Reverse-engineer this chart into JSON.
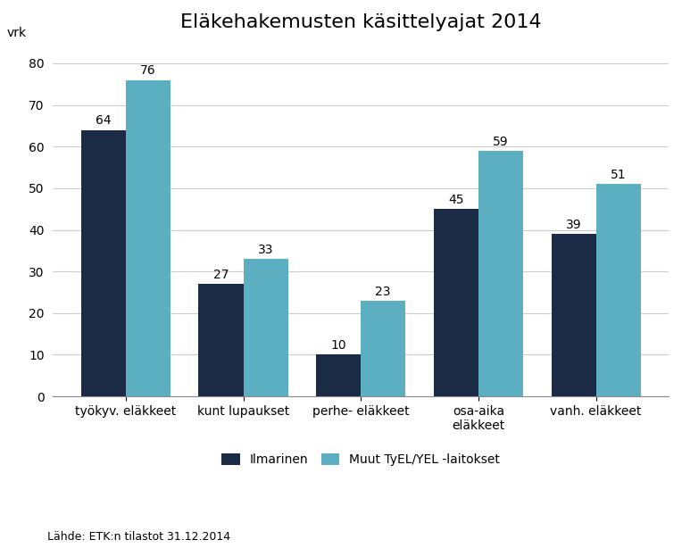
{
  "title": "Eläkehakemusten käsittelyajat 2014",
  "ylabel": "vrk",
  "categories": [
    "työkyv. eläkkeet",
    "kunt lupaukset",
    "perhe- eläkkeet",
    "osa-aika\neläkkeet",
    "vanh. eläkkeet"
  ],
  "ilmarinen_values": [
    64,
    27,
    10,
    45,
    39
  ],
  "muut_values": [
    76,
    33,
    23,
    59,
    51
  ],
  "ilmarinen_color": "#1B2A45",
  "muut_color": "#5BAFC0",
  "legend_ilmarinen": "Ilmarinen",
  "legend_muut": "Muut TyEL/YEL -laitokset",
  "footnote": "Lähde: ETK:n tilastot 31.12.2014",
  "ylim": [
    0,
    85
  ],
  "yticks": [
    0,
    10,
    20,
    30,
    40,
    50,
    60,
    70,
    80
  ],
  "bar_width": 0.38,
  "title_fontsize": 16,
  "label_fontsize": 10,
  "tick_fontsize": 10,
  "value_fontsize": 10,
  "legend_fontsize": 10,
  "footnote_fontsize": 9,
  "background_color": "#ffffff"
}
